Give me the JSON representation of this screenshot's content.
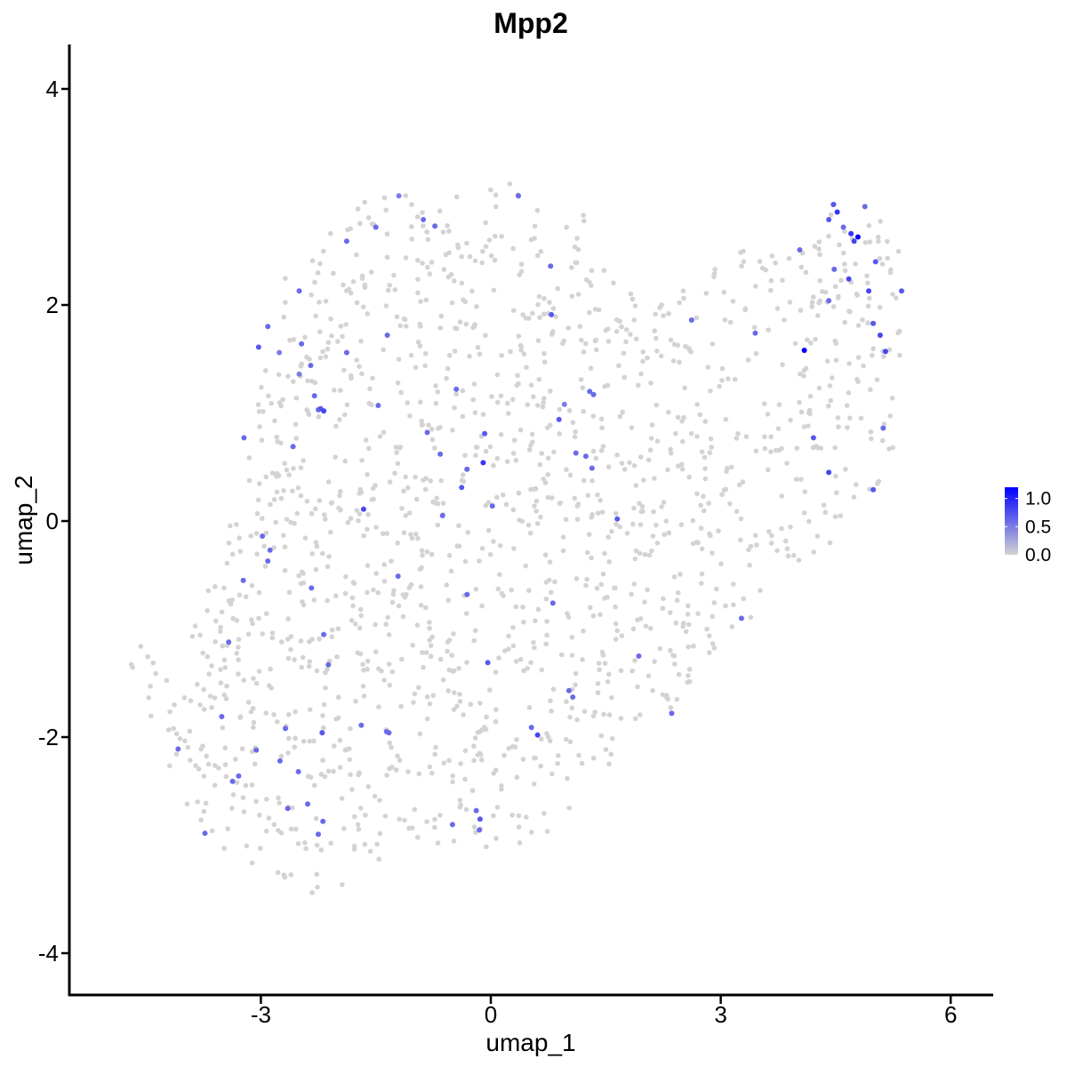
{
  "chart_data": {
    "type": "scatter",
    "title": "Mpp2",
    "xlabel": "umap_1",
    "ylabel": "umap_2",
    "xlim": [
      -5.3,
      6.6
    ],
    "ylim": [
      -4.4,
      4.4
    ],
    "xticks": [
      -3,
      0,
      3,
      6
    ],
    "yticks": [
      -4,
      -2,
      0,
      2,
      4
    ],
    "xtick_labels": [
      "-3",
      "0",
      "3",
      "6"
    ],
    "ytick_labels": [
      "-4",
      "-2",
      "0",
      "2",
      "4"
    ],
    "grid": false,
    "legend": {
      "position": "right",
      "kind": "colorbar",
      "min": 0.0,
      "max": 1.2,
      "labels": [
        "1.0",
        "0.5",
        "0.0"
      ],
      "label_values": [
        1.0,
        0.5,
        0.0
      ]
    },
    "colors": {
      "low": "#d3d3d3",
      "high": "#0000ff"
    },
    "background_cell_count": 1550,
    "expressing_points": [
      {
        "x": 4.47,
        "y": 2.93,
        "v": 0.7
      },
      {
        "x": 4.52,
        "y": 2.86,
        "v": 0.9
      },
      {
        "x": 4.41,
        "y": 2.79,
        "v": 0.7
      },
      {
        "x": 4.6,
        "y": 2.72,
        "v": 0.6
      },
      {
        "x": 4.7,
        "y": 2.66,
        "v": 0.9
      },
      {
        "x": 4.79,
        "y": 2.63,
        "v": 1.2
      },
      {
        "x": 4.88,
        "y": 2.91,
        "v": 0.6
      },
      {
        "x": 4.48,
        "y": 2.33,
        "v": 0.6
      },
      {
        "x": 4.67,
        "y": 2.24,
        "v": 0.8
      },
      {
        "x": 4.93,
        "y": 2.13,
        "v": 0.8
      },
      {
        "x": 4.99,
        "y": 1.83,
        "v": 0.7
      },
      {
        "x": 5.08,
        "y": 1.72,
        "v": 0.8
      },
      {
        "x": 5.15,
        "y": 1.57,
        "v": 0.8
      },
      {
        "x": 5.02,
        "y": 2.4,
        "v": 0.7
      },
      {
        "x": 4.41,
        "y": 2.04,
        "v": 0.6
      },
      {
        "x": 4.09,
        "y": 1.58,
        "v": 1.2
      },
      {
        "x": 4.03,
        "y": 2.51,
        "v": 0.6
      },
      {
        "x": 5.36,
        "y": 2.13,
        "v": 0.7
      },
      {
        "x": 5.12,
        "y": 0.86,
        "v": 0.6
      },
      {
        "x": 4.99,
        "y": 0.29,
        "v": 0.7
      },
      {
        "x": 4.41,
        "y": 0.45,
        "v": 0.8
      },
      {
        "x": 4.21,
        "y": 0.77,
        "v": 0.7
      },
      {
        "x": 4.74,
        "y": 2.59,
        "v": 0.8
      },
      {
        "x": -1.5,
        "y": 2.72,
        "v": 0.6
      },
      {
        "x": -1.2,
        "y": 3.01,
        "v": 0.5
      },
      {
        "x": -0.88,
        "y": 2.79,
        "v": 0.6
      },
      {
        "x": -0.73,
        "y": 2.73,
        "v": 0.6
      },
      {
        "x": 0.36,
        "y": 3.01,
        "v": 0.6
      },
      {
        "x": 0.78,
        "y": 2.36,
        "v": 0.6
      },
      {
        "x": -1.88,
        "y": 2.59,
        "v": 0.6
      },
      {
        "x": -2.5,
        "y": 2.13,
        "v": 0.6
      },
      {
        "x": -2.91,
        "y": 1.8,
        "v": 0.6
      },
      {
        "x": -3.03,
        "y": 1.61,
        "v": 0.7
      },
      {
        "x": -2.76,
        "y": 1.56,
        "v": 0.5
      },
      {
        "x": -2.47,
        "y": 1.64,
        "v": 0.6
      },
      {
        "x": -2.35,
        "y": 1.44,
        "v": 0.6
      },
      {
        "x": -2.5,
        "y": 1.36,
        "v": 0.5
      },
      {
        "x": -1.88,
        "y": 1.56,
        "v": 0.6
      },
      {
        "x": -1.35,
        "y": 1.72,
        "v": 0.6
      },
      {
        "x": -2.3,
        "y": 1.16,
        "v": 0.6
      },
      {
        "x": -2.18,
        "y": 1.02,
        "v": 0.8
      },
      {
        "x": -2.22,
        "y": 1.04,
        "v": 0.7
      },
      {
        "x": -2.25,
        "y": 1.03,
        "v": 0.6
      },
      {
        "x": -1.47,
        "y": 1.07,
        "v": 0.6
      },
      {
        "x": -0.45,
        "y": 1.22,
        "v": 0.6
      },
      {
        "x": -0.83,
        "y": 0.82,
        "v": 0.6
      },
      {
        "x": -0.08,
        "y": 0.81,
        "v": 0.7
      },
      {
        "x": -0.1,
        "y": 0.54,
        "v": 0.9
      },
      {
        "x": -0.31,
        "y": 0.48,
        "v": 0.6
      },
      {
        "x": -0.66,
        "y": 0.62,
        "v": 0.6
      },
      {
        "x": -0.38,
        "y": 0.31,
        "v": 0.7
      },
      {
        "x": -2.58,
        "y": 0.69,
        "v": 0.6
      },
      {
        "x": -3.22,
        "y": 0.77,
        "v": 0.6
      },
      {
        "x": -1.66,
        "y": 0.11,
        "v": 0.8
      },
      {
        "x": -0.63,
        "y": 0.05,
        "v": 0.6
      },
      {
        "x": 0.02,
        "y": 0.14,
        "v": 0.6
      },
      {
        "x": 0.79,
        "y": 1.91,
        "v": 0.7
      },
      {
        "x": 1.29,
        "y": 1.2,
        "v": 0.6
      },
      {
        "x": 1.34,
        "y": 1.17,
        "v": 0.6
      },
      {
        "x": 0.89,
        "y": 0.94,
        "v": 0.7
      },
      {
        "x": 0.96,
        "y": 1.08,
        "v": 0.5
      },
      {
        "x": 1.11,
        "y": 0.63,
        "v": 0.6
      },
      {
        "x": 1.24,
        "y": 0.6,
        "v": 0.6
      },
      {
        "x": 1.32,
        "y": 0.49,
        "v": 0.6
      },
      {
        "x": 1.65,
        "y": 0.02,
        "v": 0.7
      },
      {
        "x": 0.81,
        "y": -0.76,
        "v": 0.6
      },
      {
        "x": 2.62,
        "y": 1.86,
        "v": 0.6
      },
      {
        "x": 3.45,
        "y": 1.74,
        "v": 0.6
      },
      {
        "x": 3.27,
        "y": -0.9,
        "v": 0.6
      },
      {
        "x": 2.36,
        "y": -1.78,
        "v": 0.6
      },
      {
        "x": 1.93,
        "y": -1.25,
        "v": 0.6
      },
      {
        "x": 1.02,
        "y": -1.57,
        "v": 0.6
      },
      {
        "x": 1.07,
        "y": -1.63,
        "v": 0.6
      },
      {
        "x": 0.53,
        "y": -1.91,
        "v": 0.6
      },
      {
        "x": 0.61,
        "y": -1.98,
        "v": 0.8
      },
      {
        "x": -0.04,
        "y": -1.31,
        "v": 0.7
      },
      {
        "x": -0.31,
        "y": -0.68,
        "v": 0.6
      },
      {
        "x": -2.34,
        "y": -0.62,
        "v": 0.6
      },
      {
        "x": -2.98,
        "y": -0.14,
        "v": 0.6
      },
      {
        "x": -2.91,
        "y": -0.37,
        "v": 0.6
      },
      {
        "x": -2.88,
        "y": -0.27,
        "v": 0.6
      },
      {
        "x": -3.23,
        "y": -0.55,
        "v": 0.6
      },
      {
        "x": -1.21,
        "y": -0.51,
        "v": 0.6
      },
      {
        "x": -3.42,
        "y": -1.12,
        "v": 0.6
      },
      {
        "x": -2.18,
        "y": -1.05,
        "v": 0.6
      },
      {
        "x": -2.12,
        "y": -1.33,
        "v": 0.6
      },
      {
        "x": -3.51,
        "y": -1.81,
        "v": 0.6
      },
      {
        "x": -2.68,
        "y": -1.92,
        "v": 0.6
      },
      {
        "x": -2.2,
        "y": -1.96,
        "v": 0.7
      },
      {
        "x": -3.06,
        "y": -2.12,
        "v": 0.6
      },
      {
        "x": -2.75,
        "y": -2.22,
        "v": 0.6
      },
      {
        "x": -3.29,
        "y": -2.36,
        "v": 0.6
      },
      {
        "x": -3.37,
        "y": -2.41,
        "v": 0.6
      },
      {
        "x": -2.51,
        "y": -2.32,
        "v": 0.6
      },
      {
        "x": -4.08,
        "y": -2.11,
        "v": 0.6
      },
      {
        "x": -3.73,
        "y": -2.89,
        "v": 0.6
      },
      {
        "x": -2.65,
        "y": -2.66,
        "v": 0.6
      },
      {
        "x": -2.39,
        "y": -2.62,
        "v": 0.6
      },
      {
        "x": -2.19,
        "y": -2.78,
        "v": 0.6
      },
      {
        "x": -2.25,
        "y": -2.9,
        "v": 0.6
      },
      {
        "x": -1.69,
        "y": -1.89,
        "v": 0.6
      },
      {
        "x": -1.33,
        "y": -1.96,
        "v": 0.6
      },
      {
        "x": -1.36,
        "y": -1.95,
        "v": 0.6
      },
      {
        "x": -0.5,
        "y": -2.81,
        "v": 0.6
      },
      {
        "x": -0.19,
        "y": -2.68,
        "v": 0.6
      },
      {
        "x": -0.14,
        "y": -2.76,
        "v": 0.7
      },
      {
        "x": -0.15,
        "y": -2.86,
        "v": 0.6
      }
    ]
  }
}
